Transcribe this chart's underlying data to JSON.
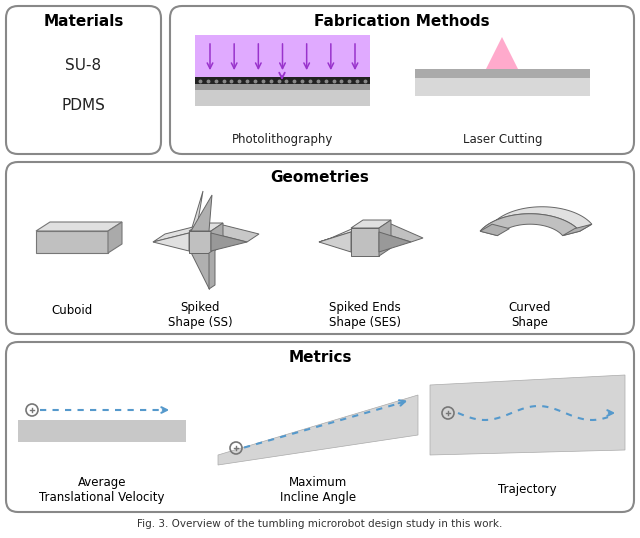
{
  "bg_color": "#ffffff",
  "title_fontsize": 11,
  "label_fontsize": 8.5,
  "materials_title": "Materials",
  "materials_items": [
    "SU-8",
    "PDMS"
  ],
  "fab_title": "Fabrication Methods",
  "fab_labels": [
    "Photolithography",
    "Laser Cutting"
  ],
  "geom_title": "Geometries",
  "geom_labels": [
    "Cuboid",
    "Spiked\nShape (SS)",
    "Spiked Ends\nShape (SES)",
    "Curved\nShape"
  ],
  "metrics_title": "Metrics",
  "metrics_labels": [
    "Average\nTranslational Velocity",
    "Maximum\nIncline Angle",
    "Trajectory"
  ],
  "purple_arrow": "#9933cc",
  "purple_light": "#dda0ff",
  "pink_laser": "#ff8888",
  "blue_dotted": "#5599cc",
  "caption": "Fig. 3. Overview of the tumbling microrobot design study in this work."
}
